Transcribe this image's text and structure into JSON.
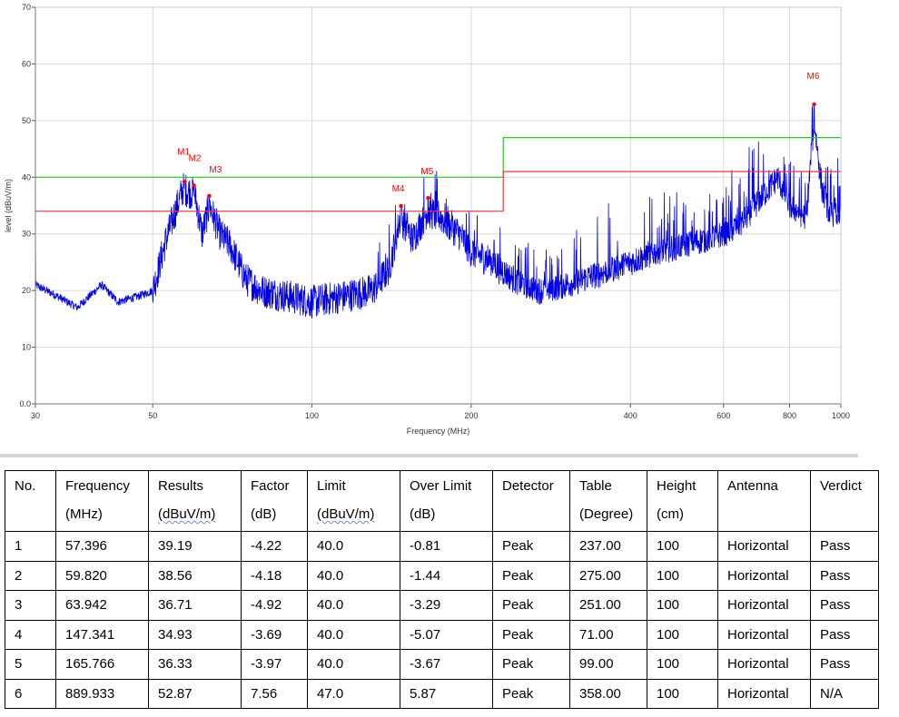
{
  "chart_data": {
    "type": "line",
    "x_scale": "log",
    "xlabel": "Frequency (MHz)",
    "ylabel": "level (dBuV/m)",
    "xlim": [
      30,
      1000
    ],
    "ylim": [
      0,
      70
    ],
    "x_ticks": [
      "30",
      "50",
      "100",
      "200",
      "400",
      "600",
      "800",
      "1000"
    ],
    "y_ticks": [
      "0.0",
      "10",
      "20",
      "30",
      "40",
      "50",
      "60",
      "70"
    ],
    "grid": true,
    "limits": [
      {
        "color": "#22cc22",
        "points": [
          [
            30,
            40
          ],
          [
            230,
            40
          ],
          [
            230,
            47
          ],
          [
            1000,
            47
          ]
        ]
      },
      {
        "color": "#ff3333",
        "points": [
          [
            30,
            34
          ],
          [
            230,
            34
          ],
          [
            230,
            41
          ],
          [
            1000,
            41
          ]
        ]
      }
    ],
    "trace_color": "#0000e6",
    "trace_envelope": [
      [
        30,
        21
      ],
      [
        33,
        19
      ],
      [
        36,
        17
      ],
      [
        40,
        21
      ],
      [
        43,
        18
      ],
      [
        47,
        19
      ],
      [
        50,
        20
      ],
      [
        53,
        29
      ],
      [
        57,
        38
      ],
      [
        60,
        37
      ],
      [
        62,
        30
      ],
      [
        64,
        35
      ],
      [
        67,
        30
      ],
      [
        70,
        28
      ],
      [
        75,
        22
      ],
      [
        80,
        20
      ],
      [
        90,
        19
      ],
      [
        100,
        18
      ],
      [
        115,
        19
      ],
      [
        130,
        20
      ],
      [
        140,
        24
      ],
      [
        147,
        33
      ],
      [
        155,
        29
      ],
      [
        165,
        34
      ],
      [
        175,
        33
      ],
      [
        190,
        30
      ],
      [
        200,
        27
      ],
      [
        220,
        25
      ],
      [
        240,
        22
      ],
      [
        270,
        20
      ],
      [
        300,
        21
      ],
      [
        350,
        23
      ],
      [
        400,
        25
      ],
      [
        450,
        27
      ],
      [
        500,
        28
      ],
      [
        550,
        29
      ],
      [
        600,
        30
      ],
      [
        650,
        32
      ],
      [
        700,
        36
      ],
      [
        760,
        40
      ],
      [
        800,
        35
      ],
      [
        860,
        33
      ],
      [
        890,
        50
      ],
      [
        920,
        38
      ],
      [
        950,
        34
      ],
      [
        1000,
        33
      ]
    ],
    "markers": [
      {
        "label": "M1",
        "x": 57.396,
        "y": 39.19
      },
      {
        "label": "M2",
        "x": 59.82,
        "y": 38.56
      },
      {
        "label": "M3",
        "x": 63.942,
        "y": 36.71
      },
      {
        "label": "M4",
        "x": 147.341,
        "y": 34.93
      },
      {
        "label": "M5",
        "x": 165.766,
        "y": 36.33
      },
      {
        "label": "M6",
        "x": 889.933,
        "y": 52.87
      }
    ],
    "marker_color": "#ff0000"
  },
  "table": {
    "headers": [
      {
        "l1": "No.",
        "l2": ""
      },
      {
        "l1": "Frequency",
        "l2": "(MHz)"
      },
      {
        "l1": "Results",
        "l2": "(dBuV/m)"
      },
      {
        "l1": "Factor",
        "l2": "(dB)"
      },
      {
        "l1": "Limit",
        "l2": "(dBuV/m)"
      },
      {
        "l1": "Over Limit",
        "l2": "(dB)"
      },
      {
        "l1": "Detector",
        "l2": ""
      },
      {
        "l1": "Table",
        "l2": "(Degree)"
      },
      {
        "l1": "Height",
        "l2": "(cm)"
      },
      {
        "l1": "Antenna",
        "l2": ""
      },
      {
        "l1": "Verdict",
        "l2": ""
      }
    ],
    "rows": [
      [
        "1",
        "57.396",
        "39.19",
        "-4.22",
        "40.0",
        "-0.81",
        "Peak",
        "237.00",
        "100",
        "Horizontal",
        "Pass"
      ],
      [
        "2",
        "59.820",
        "38.56",
        "-4.18",
        "40.0",
        "-1.44",
        "Peak",
        "275.00",
        "100",
        "Horizontal",
        "Pass"
      ],
      [
        "3",
        "63.942",
        "36.71",
        "-4.92",
        "40.0",
        "-3.29",
        "Peak",
        "251.00",
        "100",
        "Horizontal",
        "Pass"
      ],
      [
        "4",
        "147.341",
        "34.93",
        "-3.69",
        "40.0",
        "-5.07",
        "Peak",
        "71.00",
        "100",
        "Horizontal",
        "Pass"
      ],
      [
        "5",
        "165.766",
        "36.33",
        "-3.97",
        "40.0",
        "-3.67",
        "Peak",
        "99.00",
        "100",
        "Horizontal",
        "Pass"
      ],
      [
        "6",
        "889.933",
        "52.87",
        "7.56",
        "47.0",
        "5.87",
        "Peak",
        "358.00",
        "100",
        "Horizontal",
        "N/A"
      ]
    ]
  }
}
